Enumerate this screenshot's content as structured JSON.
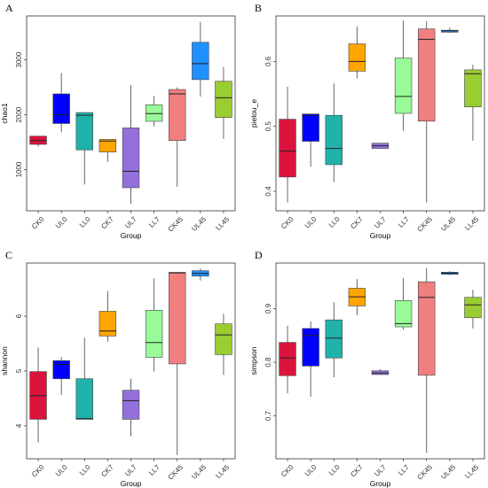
{
  "chart_data": [
    {
      "panel": "A",
      "type": "box",
      "xlabel": "Group",
      "ylabel": "chao1",
      "categories": [
        "CK0",
        "UL0",
        "LL0",
        "CK7",
        "UL7",
        "LL7",
        "CK45",
        "UL45",
        "LL45"
      ],
      "ylim": [
        250,
        3800
      ],
      "yticks": [
        1000,
        2000,
        3000
      ],
      "boxes": [
        {
          "min": 1420,
          "q1": 1460,
          "median": 1530,
          "q3": 1610,
          "max": 1610
        },
        {
          "min": 1680,
          "q1": 1840,
          "median": 2000,
          "q3": 2380,
          "max": 2760
        },
        {
          "min": 730,
          "q1": 1360,
          "median": 1990,
          "q3": 2040,
          "max": 2040
        },
        {
          "min": 1140,
          "q1": 1320,
          "median": 1520,
          "q3": 1550,
          "max": 1550
        },
        {
          "min": 380,
          "q1": 670,
          "median": 970,
          "q3": 1760,
          "max": 2540
        },
        {
          "min": 1790,
          "q1": 1880,
          "median": 2020,
          "q3": 2180,
          "max": 2340
        },
        {
          "min": 690,
          "q1": 1530,
          "median": 2380,
          "q3": 2460,
          "max": 2500
        },
        {
          "min": 2330,
          "q1": 2640,
          "median": 2930,
          "q3": 3320,
          "max": 3690
        },
        {
          "min": 1560,
          "q1": 1950,
          "median": 2310,
          "q3": 2610,
          "max": 2870
        }
      ]
    },
    {
      "panel": "B",
      "type": "box",
      "xlabel": "Group",
      "ylabel": "pielou_e",
      "categories": [
        "CK0",
        "UL0",
        "LL0",
        "CK7",
        "UL7",
        "LL7",
        "CK45",
        "UL45",
        "LL45"
      ],
      "ylim": [
        0.37,
        0.67
      ],
      "yticks": [
        0.4,
        0.5,
        0.6
      ],
      "boxes": [
        {
          "min": 0.383,
          "q1": 0.422,
          "median": 0.462,
          "q3": 0.511,
          "max": 0.561
        },
        {
          "min": 0.438,
          "q1": 0.477,
          "median": 0.517,
          "q3": 0.519,
          "max": 0.519
        },
        {
          "min": 0.414,
          "q1": 0.441,
          "median": 0.466,
          "q3": 0.517,
          "max": 0.566
        },
        {
          "min": 0.574,
          "q1": 0.585,
          "median": 0.6,
          "q3": 0.627,
          "max": 0.654
        },
        {
          "min": 0.466,
          "q1": 0.466,
          "median": 0.47,
          "q3": 0.474,
          "max": 0.474
        },
        {
          "min": 0.493,
          "q1": 0.52,
          "median": 0.546,
          "q3": 0.605,
          "max": 0.663
        },
        {
          "min": 0.383,
          "q1": 0.508,
          "median": 0.634,
          "q3": 0.65,
          "max": 0.662
        },
        {
          "min": 0.644,
          "q1": 0.645,
          "median": 0.647,
          "q3": 0.648,
          "max": 0.652
        },
        {
          "min": 0.478,
          "q1": 0.53,
          "median": 0.581,
          "q3": 0.587,
          "max": 0.595
        }
      ]
    },
    {
      "panel": "C",
      "type": "box",
      "xlabel": "Group",
      "ylabel": "shannon",
      "categories": [
        "CK0",
        "UL0",
        "LL0",
        "CK7",
        "UL7",
        "LL7",
        "CK45",
        "UL45",
        "LL45"
      ],
      "ylim": [
        3.4,
        6.97
      ],
      "yticks": [
        4,
        5,
        6
      ],
      "boxes": [
        {
          "min": 3.7,
          "q1": 4.12,
          "median": 4.55,
          "q3": 4.99,
          "max": 5.43
        },
        {
          "min": 4.56,
          "q1": 4.86,
          "median": 5.12,
          "q3": 5.19,
          "max": 5.26
        },
        {
          "min": 4.12,
          "q1": 4.12,
          "median": 4.13,
          "q3": 4.86,
          "max": 5.61
        },
        {
          "min": 5.54,
          "q1": 5.64,
          "median": 5.73,
          "q3": 6.09,
          "max": 6.46
        },
        {
          "min": 3.81,
          "q1": 4.12,
          "median": 4.46,
          "q3": 4.65,
          "max": 4.86
        },
        {
          "min": 4.99,
          "q1": 5.25,
          "median": 5.52,
          "q3": 6.11,
          "max": 6.69
        },
        {
          "min": 3.47,
          "q1": 5.13,
          "median": 6.79,
          "q3": 6.8,
          "max": 6.81
        },
        {
          "min": 6.65,
          "q1": 6.73,
          "median": 6.78,
          "q3": 6.83,
          "max": 6.87
        },
        {
          "min": 4.93,
          "q1": 5.3,
          "median": 5.66,
          "q3": 5.86,
          "max": 6.04
        }
      ]
    },
    {
      "panel": "D",
      "type": "box",
      "xlabel": "Group",
      "ylabel": "simpson",
      "categories": [
        "CK0",
        "UL0",
        "LL0",
        "CK7",
        "UL7",
        "LL7",
        "CK45",
        "UL45",
        "LL45"
      ],
      "ylim": [
        0.62,
        0.985
      ],
      "yticks": [
        0.7,
        0.8,
        0.9
      ],
      "boxes": [
        {
          "min": 0.742,
          "q1": 0.775,
          "median": 0.808,
          "q3": 0.837,
          "max": 0.868
        },
        {
          "min": 0.736,
          "q1": 0.793,
          "median": 0.85,
          "q3": 0.863,
          "max": 0.876
        },
        {
          "min": 0.772,
          "q1": 0.808,
          "median": 0.845,
          "q3": 0.879,
          "max": 0.912
        },
        {
          "min": 0.888,
          "q1": 0.905,
          "median": 0.922,
          "q3": 0.938,
          "max": 0.955
        },
        {
          "min": 0.776,
          "q1": 0.777,
          "median": 0.78,
          "q3": 0.784,
          "max": 0.787
        },
        {
          "min": 0.861,
          "q1": 0.866,
          "median": 0.872,
          "q3": 0.915,
          "max": 0.957
        },
        {
          "min": 0.631,
          "q1": 0.776,
          "median": 0.921,
          "q3": 0.95,
          "max": 0.976
        },
        {
          "min": 0.962,
          "q1": 0.964,
          "median": 0.966,
          "q3": 0.968,
          "max": 0.97
        },
        {
          "min": 0.863,
          "q1": 0.883,
          "median": 0.907,
          "q3": 0.921,
          "max": 0.935
        }
      ]
    }
  ],
  "colors": [
    "#dc143c",
    "#0000ff",
    "#20b2aa",
    "#ffa500",
    "#9370db",
    "#98fb98",
    "#f08080",
    "#1e90ff",
    "#9acd32"
  ]
}
